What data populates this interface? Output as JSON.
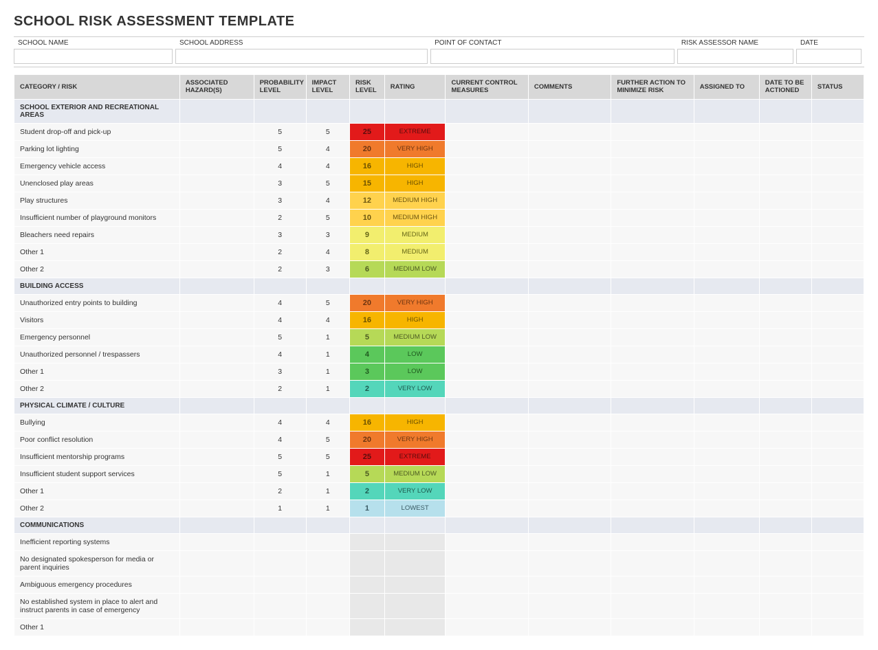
{
  "title": "SCHOOL RISK ASSESSMENT TEMPLATE",
  "meta": {
    "fields": [
      {
        "label": "SCHOOL NAME",
        "width": "19%"
      },
      {
        "label": "SCHOOL ADDRESS",
        "width": "30%"
      },
      {
        "label": "POINT OF CONTACT",
        "width": "29%"
      },
      {
        "label": "RISK ASSESSOR NAME",
        "width": "14%"
      },
      {
        "label": "DATE",
        "width": "8%"
      }
    ]
  },
  "columns": [
    "CATEGORY / RISK",
    "ASSOCIATED HAZARD(S)",
    "PROBABILITY LEVEL",
    "IMPACT LEVEL",
    "RISK LEVEL",
    "RATING",
    "CURRENT CONTROL MEASURES",
    "COMMENTS",
    "FURTHER ACTION TO MINIMIZE RISK",
    "ASSIGNED TO",
    "DATE TO BE ACTIONED",
    "STATUS"
  ],
  "rating_colors": {
    "EXTREME": {
      "bg": "#e21a1a",
      "text": "#5a0d0d"
    },
    "VERY HIGH": {
      "bg": "#f07a2c",
      "text": "#6b3410"
    },
    "HIGH": {
      "bg": "#f7b500",
      "text": "#6b5000"
    },
    "MEDIUM HIGH": {
      "bg": "#ffd24d",
      "text": "#6b5510"
    },
    "MEDIUM": {
      "bg": "#f2ee6e",
      "text": "#666617"
    },
    "MEDIUM LOW": {
      "bg": "#b6d957",
      "text": "#4d5a22"
    },
    "LOW": {
      "bg": "#5bc85b",
      "text": "#1f5a1f"
    },
    "VERY LOW": {
      "bg": "#54d6ba",
      "text": "#1e5a4e"
    },
    "LOWEST": {
      "bg": "#b6e0ec",
      "text": "#3a5a63"
    }
  },
  "risklevel_default_bg": "#e8e8e8",
  "rating_default_bg": "#e8e8e8",
  "sections": [
    {
      "name": "SCHOOL EXTERIOR AND RECREATIONAL AREAS",
      "rows": [
        {
          "label": "Student drop-off and pick-up",
          "prob": 5,
          "impact": 5,
          "risk": 25,
          "rating": "EXTREME"
        },
        {
          "label": "Parking lot lighting",
          "prob": 5,
          "impact": 4,
          "risk": 20,
          "rating": "VERY HIGH"
        },
        {
          "label": "Emergency vehicle access",
          "prob": 4,
          "impact": 4,
          "risk": 16,
          "rating": "HIGH"
        },
        {
          "label": "Unenclosed play areas",
          "prob": 3,
          "impact": 5,
          "risk": 15,
          "rating": "HIGH"
        },
        {
          "label": "Play structures",
          "prob": 3,
          "impact": 4,
          "risk": 12,
          "rating": "MEDIUM HIGH"
        },
        {
          "label": "Insufficient number of playground monitors",
          "prob": 2,
          "impact": 5,
          "risk": 10,
          "rating": "MEDIUM HIGH"
        },
        {
          "label": "Bleachers need repairs",
          "prob": 3,
          "impact": 3,
          "risk": 9,
          "rating": "MEDIUM"
        },
        {
          "label": "Other 1",
          "prob": 2,
          "impact": 4,
          "risk": 8,
          "rating": "MEDIUM"
        },
        {
          "label": "Other 2",
          "prob": 2,
          "impact": 3,
          "risk": 6,
          "rating": "MEDIUM LOW"
        }
      ]
    },
    {
      "name": "BUILDING ACCESS",
      "rows": [
        {
          "label": "Unauthorized entry points to building",
          "prob": 4,
          "impact": 5,
          "risk": 20,
          "rating": "VERY HIGH"
        },
        {
          "label": "Visitors",
          "prob": 4,
          "impact": 4,
          "risk": 16,
          "rating": "HIGH"
        },
        {
          "label": "Emergency personnel",
          "prob": 5,
          "impact": 1,
          "risk": 5,
          "rating": "MEDIUM LOW"
        },
        {
          "label": "Unauthorized personnel / trespassers",
          "prob": 4,
          "impact": 1,
          "risk": 4,
          "rating": "LOW"
        },
        {
          "label": "Other 1",
          "prob": 3,
          "impact": 1,
          "risk": 3,
          "rating": "LOW"
        },
        {
          "label": "Other 2",
          "prob": 2,
          "impact": 1,
          "risk": 2,
          "rating": "VERY LOW"
        }
      ]
    },
    {
      "name": "PHYSICAL CLIMATE / CULTURE",
      "rows": [
        {
          "label": "Bullying",
          "prob": 4,
          "impact": 4,
          "risk": 16,
          "rating": "HIGH"
        },
        {
          "label": "Poor conflict resolution",
          "prob": 4,
          "impact": 5,
          "risk": 20,
          "rating": "VERY HIGH"
        },
        {
          "label": "Insufficient mentorship programs",
          "prob": 5,
          "impact": 5,
          "risk": 25,
          "rating": "EXTREME"
        },
        {
          "label": "Insufficient student support services",
          "prob": 5,
          "impact": 1,
          "risk": 5,
          "rating": "MEDIUM LOW"
        },
        {
          "label": "Other 1",
          "prob": 2,
          "impact": 1,
          "risk": 2,
          "rating": "VERY LOW"
        },
        {
          "label": "Other 2",
          "prob": 1,
          "impact": 1,
          "risk": 1,
          "rating": "LOWEST"
        }
      ]
    },
    {
      "name": "COMMUNICATIONS",
      "rows": [
        {
          "label": "Inefficient reporting systems"
        },
        {
          "label": "No designated spokesperson for media or parent inquiries"
        },
        {
          "label": "Ambiguous emergency procedures"
        },
        {
          "label": "No established system in place to alert and instruct parents in case of emergency"
        },
        {
          "label": "Other 1"
        }
      ]
    }
  ]
}
